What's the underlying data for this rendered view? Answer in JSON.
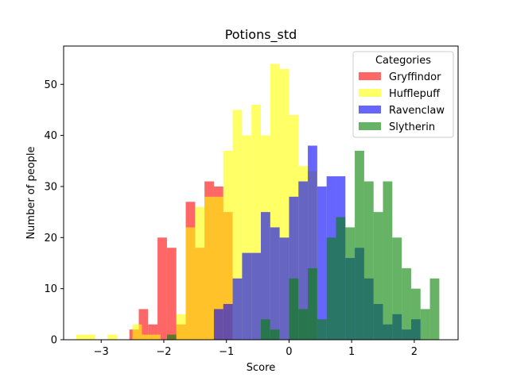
{
  "chart_data": {
    "type": "bar",
    "title": "Potions_std",
    "xlabel": "Score",
    "ylabel": "Number of people",
    "xlim": [
      -3.6,
      2.7
    ],
    "ylim": [
      0,
      57.5
    ],
    "xticks": [
      -3,
      -2,
      -1,
      0,
      1,
      2
    ],
    "xtick_labels": [
      "−3",
      "−2",
      "−1",
      "0",
      "1",
      "2"
    ],
    "yticks": [
      0,
      10,
      20,
      30,
      40,
      50
    ],
    "ytick_labels": [
      "0",
      "10",
      "20",
      "30",
      "40",
      "50"
    ],
    "legend": {
      "title": "Categories",
      "position": "top-right"
    },
    "grid": false,
    "series": [
      {
        "name": "Gryffindor",
        "color": "#ff0000",
        "opacity": 0.6,
        "bins": [
          [
            -2.55,
            -2.4,
            2
          ],
          [
            -2.4,
            -2.25,
            6
          ],
          [
            -2.25,
            -2.1,
            3
          ],
          [
            -2.1,
            -1.95,
            20
          ],
          [
            -1.95,
            -1.8,
            18
          ],
          [
            -1.8,
            -1.65,
            3
          ],
          [
            -1.65,
            -1.5,
            27
          ],
          [
            -1.5,
            -1.35,
            18
          ],
          [
            -1.35,
            -1.2,
            31
          ],
          [
            -1.2,
            -1.05,
            30
          ],
          [
            -1.05,
            -0.9,
            25
          ]
        ]
      },
      {
        "name": "Hufflepuff",
        "color": "#ffff00",
        "opacity": 0.6,
        "bins": [
          [
            -3.4,
            -3.25,
            1
          ],
          [
            -3.25,
            -3.1,
            1
          ],
          [
            -2.9,
            -2.75,
            1
          ],
          [
            -2.5,
            -2.35,
            3
          ],
          [
            -2.35,
            -2.2,
            1
          ],
          [
            -2.2,
            -2.05,
            1
          ],
          [
            -1.8,
            -1.65,
            5
          ],
          [
            -1.65,
            -1.5,
            22
          ],
          [
            -1.5,
            -1.35,
            26
          ],
          [
            -1.35,
            -1.2,
            28
          ],
          [
            -1.2,
            -1.05,
            28
          ],
          [
            -1.05,
            -0.9,
            37
          ],
          [
            -0.9,
            -0.75,
            45
          ],
          [
            -0.75,
            -0.6,
            40
          ],
          [
            -0.6,
            -0.45,
            46
          ],
          [
            -0.45,
            -0.3,
            40
          ],
          [
            -0.3,
            -0.15,
            54
          ],
          [
            -0.15,
            0.0,
            53
          ],
          [
            0.0,
            0.15,
            44
          ],
          [
            0.15,
            0.3,
            34
          ],
          [
            0.3,
            0.45,
            33
          ]
        ]
      },
      {
        "name": "Ravenclaw",
        "color": "#0000ff",
        "opacity": 0.6,
        "bins": [
          [
            -1.2,
            -1.05,
            6
          ],
          [
            -1.05,
            -0.9,
            7
          ],
          [
            -0.9,
            -0.75,
            12
          ],
          [
            -0.75,
            -0.6,
            17
          ],
          [
            -0.6,
            -0.45,
            17
          ],
          [
            -0.45,
            -0.3,
            25
          ],
          [
            -0.3,
            -0.15,
            22
          ],
          [
            -0.15,
            0.0,
            20
          ],
          [
            0.0,
            0.15,
            28
          ],
          [
            0.15,
            0.3,
            31
          ],
          [
            0.3,
            0.45,
            38
          ],
          [
            0.45,
            0.6,
            30
          ],
          [
            0.6,
            0.75,
            32
          ],
          [
            0.75,
            0.9,
            32
          ],
          [
            0.9,
            1.05,
            16
          ],
          [
            1.05,
            1.2,
            18
          ],
          [
            1.2,
            1.35,
            12
          ],
          [
            1.35,
            1.5,
            7
          ],
          [
            1.5,
            1.65,
            3
          ],
          [
            1.65,
            1.8,
            5
          ],
          [
            1.8,
            1.95,
            2
          ],
          [
            1.95,
            2.1,
            4
          ]
        ]
      },
      {
        "name": "Slytherin",
        "color": "#008000",
        "opacity": 0.6,
        "bins": [
          [
            -1.95,
            -1.8,
            1
          ],
          [
            -0.45,
            -0.3,
            4
          ],
          [
            -0.3,
            -0.15,
            2
          ],
          [
            0.0,
            0.15,
            12
          ],
          [
            0.15,
            0.3,
            6
          ],
          [
            0.3,
            0.45,
            14
          ],
          [
            0.45,
            0.6,
            4
          ],
          [
            0.6,
            0.75,
            20
          ],
          [
            0.75,
            0.9,
            24
          ],
          [
            0.9,
            1.05,
            22
          ],
          [
            1.05,
            1.2,
            37
          ],
          [
            1.2,
            1.35,
            31
          ],
          [
            1.35,
            1.5,
            25
          ],
          [
            1.5,
            1.65,
            31
          ],
          [
            1.65,
            1.8,
            20
          ],
          [
            1.8,
            1.95,
            14
          ],
          [
            1.95,
            2.1,
            10
          ],
          [
            2.1,
            2.25,
            6
          ],
          [
            2.25,
            2.4,
            12
          ]
        ]
      }
    ]
  }
}
